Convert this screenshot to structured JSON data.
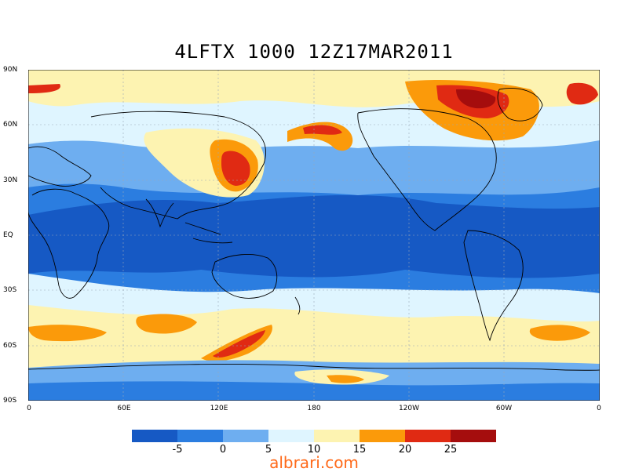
{
  "title": "4LFTX 1000 12Z17MAR2011",
  "lat_ticks": [
    "90N",
    "60N",
    "30N",
    "EQ",
    "30S",
    "60S",
    "90S"
  ],
  "lon_ticks": [
    "0",
    "60E",
    "120E",
    "180",
    "120W",
    "60W",
    "0"
  ],
  "colorbar": {
    "colors": [
      "#1659c4",
      "#2b7de0",
      "#6eaef0",
      "#dff5ff",
      "#fdf3b1",
      "#fb9a0a",
      "#e02a13",
      "#a50d0d"
    ],
    "labels": [
      "-5",
      "0",
      "5",
      "10",
      "15",
      "20",
      "25"
    ]
  },
  "watermark": "albrari.com",
  "colors": {
    "ocean_base": "#2b7de0",
    "tropics": "#1659c4",
    "mid": "#6eaef0",
    "light": "#dff5ff",
    "yellow": "#fdf3b1",
    "orange": "#fb9a0a",
    "red": "#e02a13",
    "darkred": "#a50d0d"
  }
}
